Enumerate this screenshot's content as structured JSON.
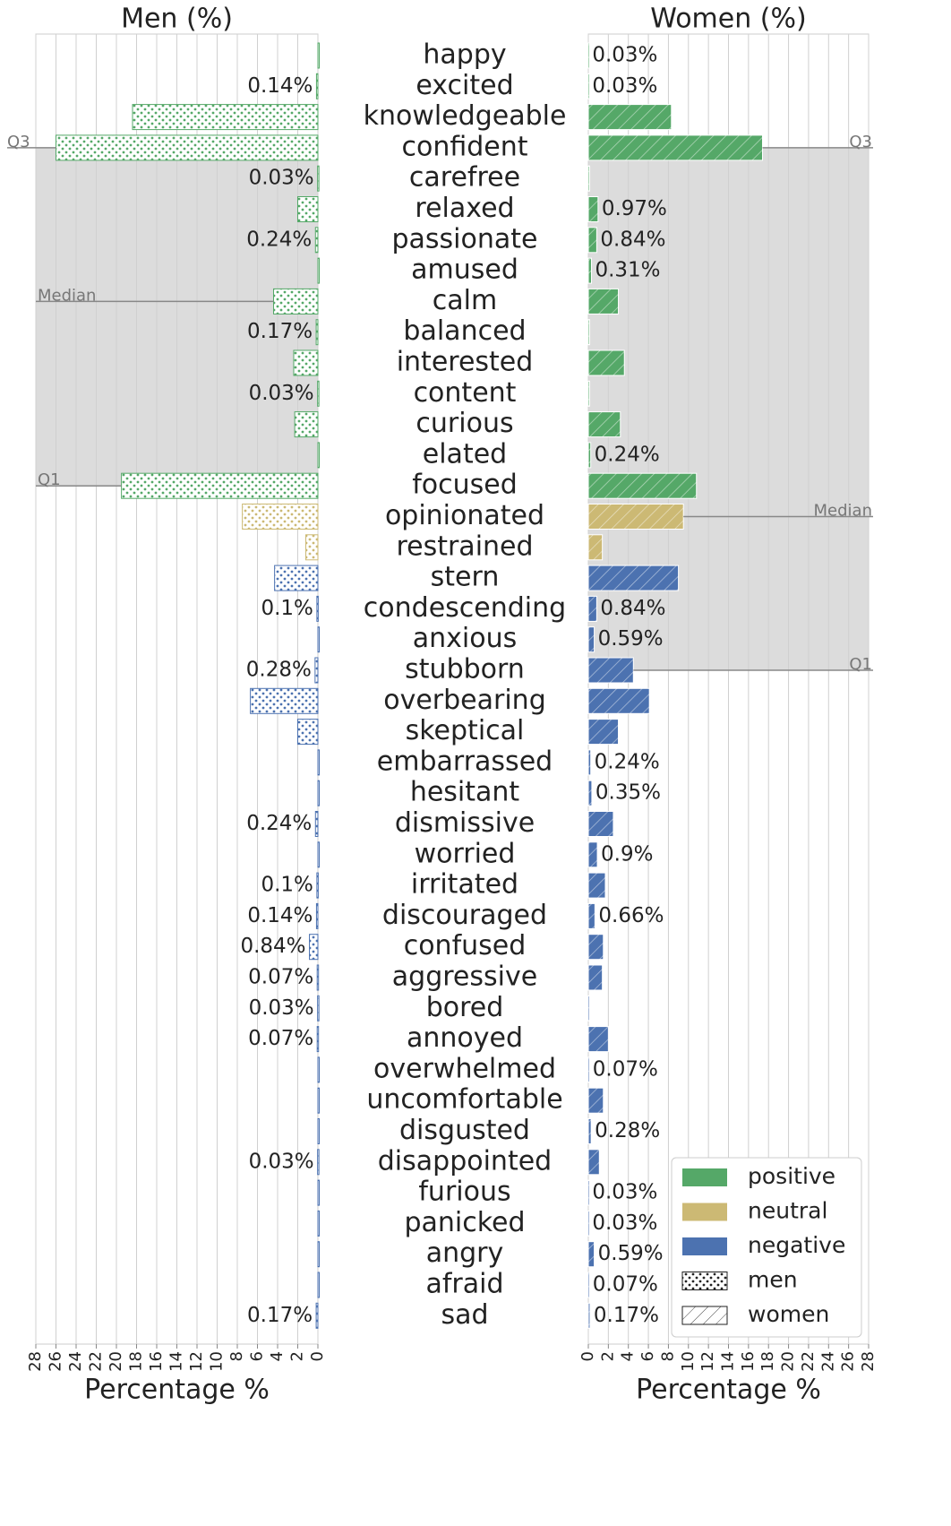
{
  "chart_data": [
    {
      "type": "barh",
      "title": "Men (%)",
      "xlabel": "Percentage %",
      "categories": [
        "happy",
        "excited",
        "knowledgeable",
        "confident",
        "carefree",
        "relaxed",
        "passionate",
        "amused",
        "calm",
        "balanced",
        "interested",
        "content",
        "curious",
        "elated",
        "focused",
        "opinionated",
        "restrained",
        "stern",
        "condescending",
        "anxious",
        "stubborn",
        "overbearing",
        "skeptical",
        "embarrassed",
        "hesitant",
        "dismissive",
        "worried",
        "irritated",
        "discouraged",
        "confused",
        "aggressive",
        "bored",
        "annoyed",
        "overwhelmed",
        "uncomfortable",
        "disgusted",
        "disappointed",
        "furious",
        "panicked",
        "angry",
        "afraid",
        "sad"
      ],
      "colors": [
        "#55a868",
        "#55a868",
        "#55a868",
        "#55a868",
        "#55a868",
        "#55a868",
        "#55a868",
        "#55a868",
        "#55a868",
        "#55a868",
        "#55a868",
        "#55a868",
        "#55a868",
        "#55a868",
        "#55a868",
        "#ccb974",
        "#ccb974",
        "#4c72b0",
        "#4c72b0",
        "#4c72b0",
        "#4c72b0",
        "#4c72b0",
        "#4c72b0",
        "#4c72b0",
        "#4c72b0",
        "#4c72b0",
        "#4c72b0",
        "#4c72b0",
        "#4c72b0",
        "#4c72b0",
        "#4c72b0",
        "#4c72b0",
        "#4c72b0",
        "#4c72b0",
        "#4c72b0",
        "#4c72b0",
        "#4c72b0",
        "#4c72b0",
        "#4c72b0",
        "#4c72b0",
        "#4c72b0",
        "#4c72b0"
      ],
      "pattern": "dots",
      "values": [
        0,
        0.14,
        18.4,
        26.0,
        0.03,
        2.0,
        0.24,
        0,
        4.4,
        0.17,
        2.4,
        0.03,
        2.3,
        0,
        19.5,
        7.5,
        1.2,
        4.3,
        0.1,
        0,
        0.28,
        6.7,
        2.0,
        0,
        0,
        0.24,
        0,
        0.1,
        0.14,
        0.84,
        0.07,
        0.03,
        0.07,
        0,
        0,
        0,
        0.03,
        0,
        0,
        0,
        0,
        0.17
      ],
      "value_labels": [
        null,
        "0.14%",
        null,
        null,
        "0.03%",
        null,
        "0.24%",
        null,
        null,
        "0.17%",
        null,
        "0.03%",
        null,
        null,
        null,
        null,
        null,
        null,
        "0.1%",
        null,
        "0.28%",
        null,
        null,
        null,
        null,
        "0.24%",
        null,
        "0.1%",
        "0.14%",
        "0.84%",
        "0.07%",
        "0.03%",
        "0.07%",
        null,
        null,
        null,
        "0.03%",
        null,
        null,
        null,
        null,
        "0.17%"
      ],
      "xlim": [
        28,
        0
      ],
      "xticks": [
        0,
        2,
        4,
        6,
        8,
        10,
        12,
        14,
        16,
        18,
        20,
        22,
        24,
        26,
        28
      ],
      "grid": true,
      "annotations": [
        {
          "text": "Q3",
          "category": "confident"
        },
        {
          "text": "Median",
          "category": "calm"
        },
        {
          "text": "Q1",
          "category": "focused"
        }
      ]
    },
    {
      "type": "barh",
      "title": "Women (%)",
      "xlabel": "Percentage %",
      "pattern": "hatch",
      "values": [
        0.03,
        0.03,
        8.3,
        17.4,
        0,
        0.97,
        0.84,
        0.31,
        3.0,
        0,
        3.6,
        0,
        3.2,
        0.24,
        10.8,
        9.5,
        1.4,
        9.0,
        0.84,
        0.59,
        4.5,
        6.1,
        3.0,
        0.24,
        0.35,
        2.5,
        0.9,
        1.7,
        0.66,
        1.5,
        1.4,
        0,
        2.0,
        0.07,
        1.5,
        0.28,
        1.1,
        0.03,
        0.03,
        0.59,
        0.07,
        0.17
      ],
      "value_labels": [
        "0.03%",
        "0.03%",
        null,
        null,
        null,
        "0.97%",
        "0.84%",
        "0.31%",
        null,
        null,
        null,
        null,
        null,
        "0.24%",
        null,
        null,
        null,
        null,
        "0.84%",
        "0.59%",
        null,
        null,
        null,
        "0.24%",
        "0.35%",
        null,
        "0.9%",
        null,
        "0.66%",
        null,
        null,
        null,
        null,
        "0.07%",
        null,
        "0.28%",
        null,
        "0.03%",
        "0.03%",
        "0.59%",
        "0.07%",
        "0.17%"
      ],
      "xlim": [
        0,
        28
      ],
      "xticks": [
        0,
        2,
        4,
        6,
        8,
        10,
        12,
        14,
        16,
        18,
        20,
        22,
        24,
        26,
        28
      ],
      "grid": true,
      "annotations": [
        {
          "text": "Q3",
          "category": "confident"
        },
        {
          "text": "Median",
          "category": "opinionated"
        },
        {
          "text": "Q1",
          "category": "stubborn"
        }
      ]
    }
  ],
  "legend": {
    "position": "lower right",
    "entries": [
      {
        "name": "positive",
        "color": "#55a868"
      },
      {
        "name": "neutral",
        "color": "#ccb974"
      },
      {
        "name": "negative",
        "color": "#4c72b0"
      },
      {
        "name": "men",
        "pattern": "dots"
      },
      {
        "name": "women",
        "pattern": "hatch"
      }
    ]
  }
}
